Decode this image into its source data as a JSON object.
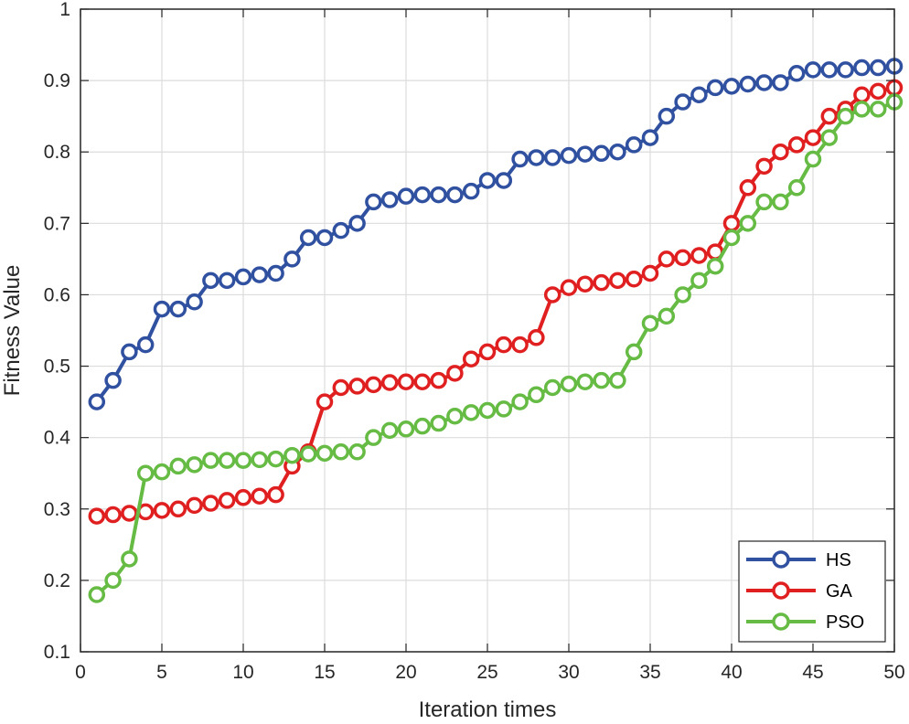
{
  "chart_data": {
    "type": "line",
    "title": "",
    "xlabel": "Iteration times",
    "ylabel": "Fitness Value",
    "xlim": [
      0,
      50
    ],
    "ylim": [
      0.1,
      1
    ],
    "xticks": [
      0,
      5,
      10,
      15,
      20,
      25,
      30,
      35,
      40,
      45,
      50
    ],
    "yticks": [
      0.1,
      0.2,
      0.3,
      0.4,
      0.5,
      0.6,
      0.7,
      0.8,
      0.9,
      1
    ],
    "xtick_labels": [
      "0",
      "5",
      "10",
      "15",
      "20",
      "25",
      "30",
      "35",
      "40",
      "45",
      "50"
    ],
    "ytick_labels": [
      "0.1",
      "0.2",
      "0.3",
      "0.4",
      "0.5",
      "0.6",
      "0.7",
      "0.8",
      "0.9",
      "1"
    ],
    "grid": true,
    "legend_position": "bottom-right",
    "marker": "circle",
    "x": [
      1,
      2,
      3,
      4,
      5,
      6,
      7,
      8,
      9,
      10,
      11,
      12,
      13,
      14,
      15,
      16,
      17,
      18,
      19,
      20,
      21,
      22,
      23,
      24,
      25,
      26,
      27,
      28,
      29,
      30,
      31,
      32,
      33,
      34,
      35,
      36,
      37,
      38,
      39,
      40,
      41,
      42,
      43,
      44,
      45,
      46,
      47,
      48,
      49,
      50
    ],
    "series": [
      {
        "name": "HS",
        "color": "#3050a0",
        "values": [
          0.45,
          0.48,
          0.52,
          0.53,
          0.58,
          0.58,
          0.59,
          0.62,
          0.62,
          0.625,
          0.628,
          0.63,
          0.65,
          0.68,
          0.68,
          0.69,
          0.7,
          0.73,
          0.733,
          0.738,
          0.74,
          0.74,
          0.74,
          0.745,
          0.76,
          0.76,
          0.79,
          0.792,
          0.792,
          0.795,
          0.797,
          0.798,
          0.8,
          0.81,
          0.82,
          0.85,
          0.87,
          0.88,
          0.89,
          0.892,
          0.895,
          0.897,
          0.897,
          0.91,
          0.915,
          0.915,
          0.915,
          0.918,
          0.918,
          0.92
        ]
      },
      {
        "name": "GA",
        "color": "#e02020",
        "values": [
          0.29,
          0.292,
          0.294,
          0.296,
          0.298,
          0.3,
          0.305,
          0.308,
          0.312,
          0.316,
          0.318,
          0.32,
          0.36,
          0.38,
          0.45,
          0.47,
          0.472,
          0.474,
          0.477,
          0.478,
          0.478,
          0.48,
          0.49,
          0.51,
          0.52,
          0.53,
          0.53,
          0.54,
          0.6,
          0.61,
          0.615,
          0.617,
          0.62,
          0.622,
          0.63,
          0.65,
          0.652,
          0.655,
          0.66,
          0.7,
          0.75,
          0.78,
          0.8,
          0.81,
          0.82,
          0.85,
          0.86,
          0.88,
          0.885,
          0.89
        ]
      },
      {
        "name": "PSO",
        "color": "#66bb44",
        "values": [
          0.18,
          0.2,
          0.23,
          0.35,
          0.352,
          0.36,
          0.362,
          0.368,
          0.368,
          0.368,
          0.369,
          0.37,
          0.375,
          0.377,
          0.378,
          0.38,
          0.38,
          0.4,
          0.41,
          0.412,
          0.416,
          0.42,
          0.43,
          0.435,
          0.438,
          0.44,
          0.45,
          0.46,
          0.47,
          0.475,
          0.478,
          0.48,
          0.48,
          0.52,
          0.56,
          0.57,
          0.6,
          0.62,
          0.64,
          0.68,
          0.7,
          0.73,
          0.73,
          0.75,
          0.79,
          0.82,
          0.85,
          0.86,
          0.86,
          0.87
        ]
      }
    ]
  }
}
